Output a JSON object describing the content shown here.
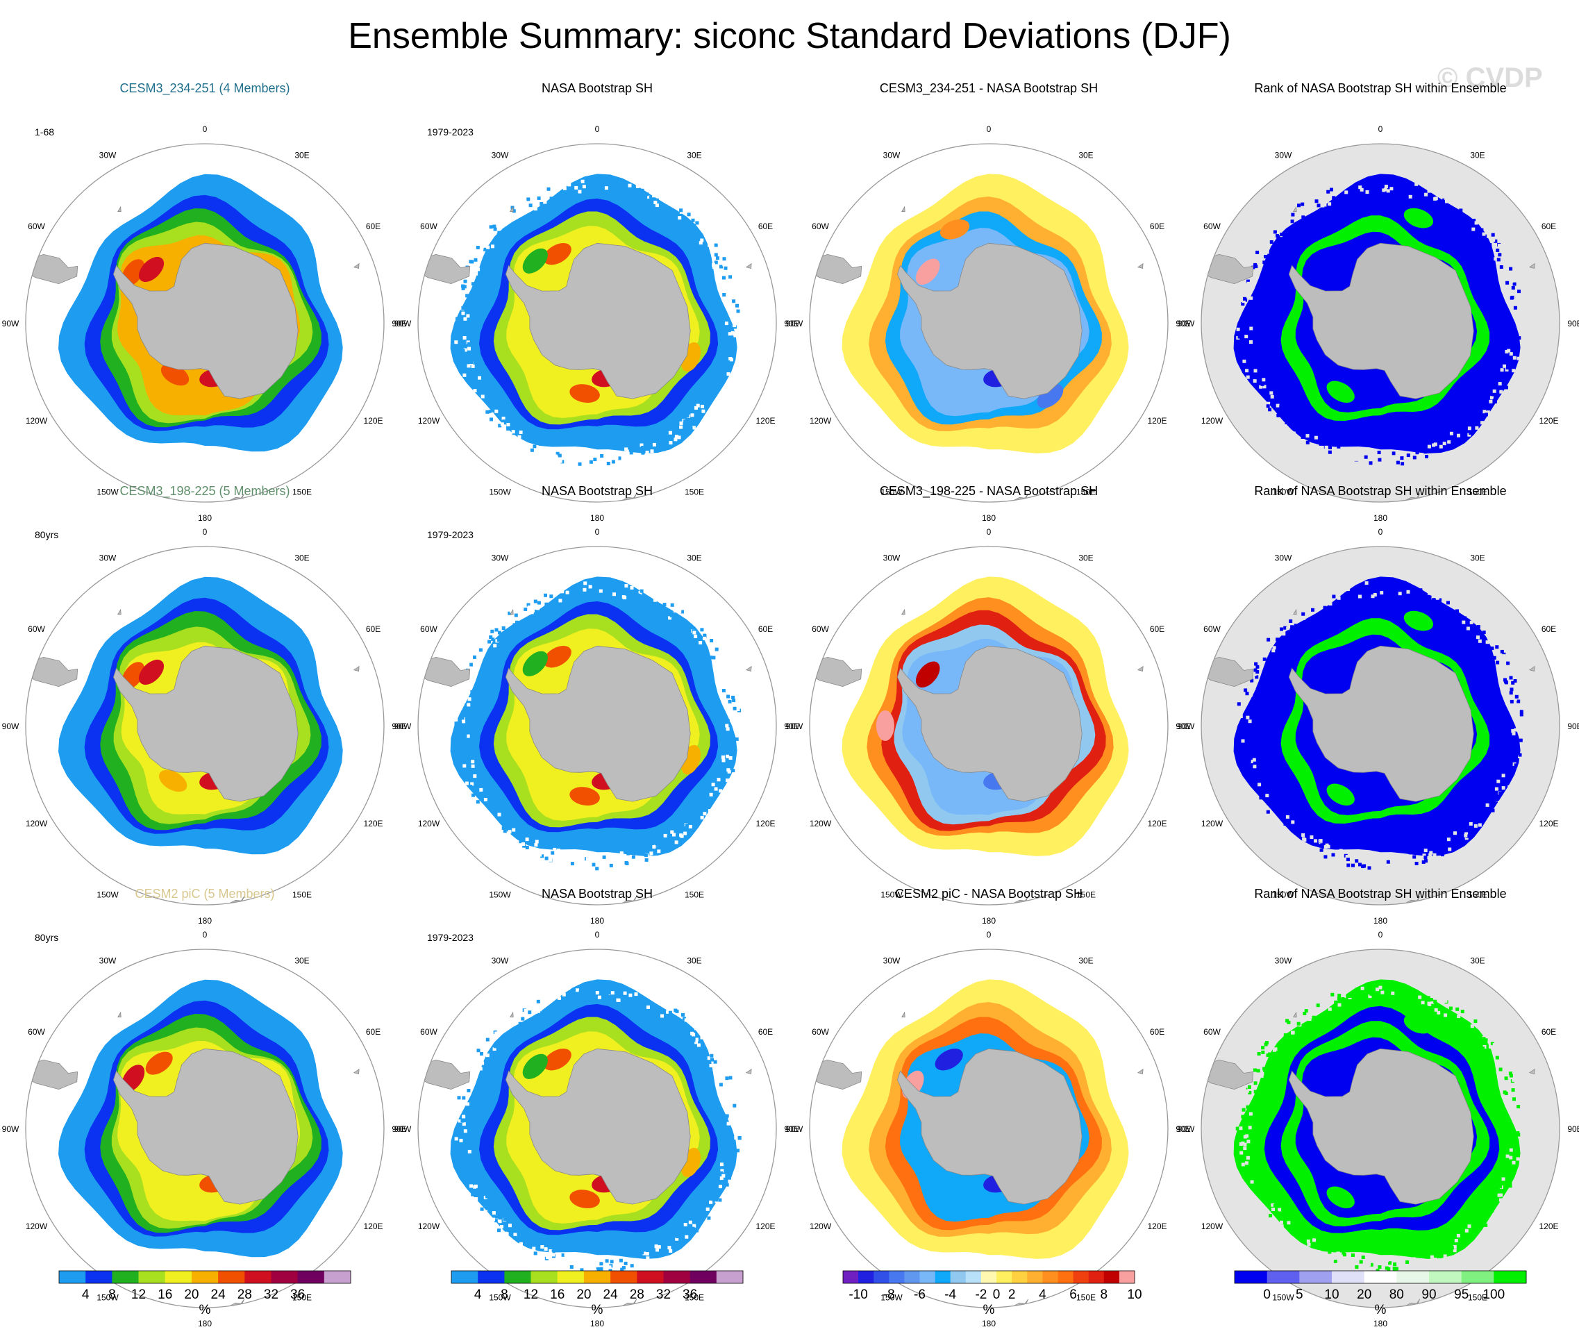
{
  "figure": {
    "title": "Ensemble Summary: siconc Standard Deviations (DJF)",
    "watermark": "© CVDP"
  },
  "lon_labels": [
    "0",
    "30E",
    "60E",
    "90E",
    "120E",
    "150E",
    "180",
    "150W",
    "120W",
    "90W",
    "60W",
    "30W"
  ],
  "colors": {
    "land": "#bdbdbd",
    "land_edge": "#888888",
    "ocean_rank": "#e4e4e4",
    "circle": "#999999",
    "title_row1": "#1f6f8b",
    "title_row2": "#5f8f6a",
    "title_row3": "#d8c78e"
  },
  "colorbars": {
    "std": {
      "colors": [
        "#1e9cf0",
        "#0a32f0",
        "#20b020",
        "#a8e020",
        "#f0f020",
        "#f8b000",
        "#f05000",
        "#d01020",
        "#a00040",
        "#700060",
        "#c8a0d0"
      ],
      "labels": [
        "4",
        "8",
        "12",
        "16",
        "20",
        "24",
        "28",
        "32",
        "36"
      ],
      "label_edges": [
        1,
        2,
        3,
        4,
        5,
        6,
        7,
        8,
        9
      ],
      "unit": "%"
    },
    "diff": {
      "colors": [
        "#7020c0",
        "#2020e0",
        "#3050e8",
        "#4878f0",
        "#6098f0",
        "#78b8f8",
        "#10a8f8",
        "#90c8f0",
        "#b8e0f8",
        "#fff8b0",
        "#fff060",
        "#ffd040",
        "#ffb030",
        "#ff9020",
        "#ff7010",
        "#f04010",
        "#e02010",
        "#c00000",
        "#f8a0a0"
      ],
      "labels": [
        "-10",
        "-8",
        "-6",
        "-4",
        "-2",
        "0",
        "2",
        "4",
        "6",
        "8",
        "10"
      ],
      "label_edges": [
        1,
        3,
        5,
        7,
        9,
        10,
        11,
        13,
        15,
        17,
        19
      ],
      "unit": "%"
    },
    "rank": {
      "colors": [
        "#0000f0",
        "#6060f0",
        "#a0a0f0",
        "#e0e0f8",
        "#ffffff",
        "#e8f8e8",
        "#c0f8c0",
        "#80f080",
        "#00f000"
      ],
      "labels": [
        "0",
        "5",
        "10",
        "20",
        "80",
        "90",
        "95",
        "100"
      ],
      "label_edges": [
        1,
        2,
        3,
        4,
        5,
        6,
        7,
        8
      ],
      "unit": "%"
    }
  },
  "chart_data": [
    {
      "panel": "r1c1",
      "type": "heatmap",
      "projection": "south-polar-stereographic",
      "title": "CESM3_234-251 (4 Members)",
      "title_color": "title_row1",
      "corner_label": "1-68",
      "colorbar": "std",
      "ice_edge_lat": -56,
      "ice_edge_amp": 2.5,
      "bands": [
        {
          "lat": -57.5,
          "value": 3
        },
        {
          "lat": -61,
          "value": 7
        },
        {
          "lat": -63.5,
          "value": 11
        },
        {
          "lat": -65.5,
          "value": 15
        },
        {
          "lat": -67.5,
          "value": 20
        }
      ],
      "hotspots": [
        {
          "lon": -55,
          "lat": -68,
          "value": 26
        },
        {
          "lon": -45,
          "lat": -71,
          "value": 30
        },
        {
          "lon": 170,
          "lat": -76,
          "value": 28
        },
        {
          "lon": -150,
          "lat": -75,
          "value": 24
        }
      ]
    },
    {
      "panel": "r1c2",
      "type": "heatmap",
      "projection": "south-polar-stereographic",
      "title": "NASA Bootstrap SH",
      "corner_label": "1979-2023",
      "colorbar": "std",
      "ice_edge_lat": -55.5,
      "ice_edge_amp": 2,
      "speckle": true,
      "bands": [
        {
          "lat": -57.5,
          "value": 3
        },
        {
          "lat": -61.5,
          "value": 7
        },
        {
          "lat": -64,
          "value": 13
        },
        {
          "lat": -66.5,
          "value": 17
        }
      ],
      "hotspots": [
        {
          "lon": -30,
          "lat": -70,
          "value": 26
        },
        {
          "lon": -45,
          "lat": -68,
          "value": 8
        },
        {
          "lon": 170,
          "lat": -76,
          "value": 30
        },
        {
          "lon": -170,
          "lat": -72,
          "value": 24
        },
        {
          "lon": 110,
          "lat": -65,
          "value": 22
        }
      ]
    },
    {
      "panel": "r1c3",
      "type": "heatmap",
      "projection": "south-polar-stereographic",
      "title": "CESM3_234-251 - NASA Bootstrap SH",
      "corner_label": "",
      "colorbar": "diff",
      "ice_edge_lat": -55.5,
      "ice_edge_amp": 2,
      "bands": [
        {
          "lat": -57.5,
          "value": 1
        },
        {
          "lat": -61,
          "value": 3
        },
        {
          "lat": -64,
          "value": -3
        },
        {
          "lat": -67,
          "value": -5
        }
      ],
      "hotspots": [
        {
          "lon": -50,
          "lat": -70,
          "value": 11
        },
        {
          "lon": -20,
          "lat": -65,
          "value": 5
        },
        {
          "lon": 170,
          "lat": -76,
          "value": -9
        },
        {
          "lon": 140,
          "lat": -66,
          "value": -7
        }
      ]
    },
    {
      "panel": "r1c4",
      "type": "heatmap",
      "projection": "south-polar-stereographic",
      "title": "Rank of NASA Bootstrap SH within Ensemble",
      "corner_label": "",
      "colorbar": "rank",
      "ice_edge_lat": -55.5,
      "ice_edge_amp": 2,
      "rank_ocean": true,
      "speckle": true,
      "bands": [
        {
          "lat": -57.5,
          "value": 0
        },
        {
          "lat": -62,
          "value": 0
        },
        {
          "lat": -65,
          "value": 100
        },
        {
          "lat": -68,
          "value": 0
        }
      ],
      "hotspots": [
        {
          "lon": 20,
          "lat": -62,
          "value": 100
        },
        {
          "lon": -150,
          "lat": -70,
          "value": 100
        }
      ]
    },
    {
      "panel": "r2c1",
      "type": "heatmap",
      "projection": "south-polar-stereographic",
      "title": "CESM3_198-225 (5 Members)",
      "title_color": "title_row2",
      "corner_label": "80yrs",
      "colorbar": "std",
      "ice_edge_lat": -56,
      "ice_edge_amp": 2.5,
      "bands": [
        {
          "lat": -57.5,
          "value": 3
        },
        {
          "lat": -61,
          "value": 7
        },
        {
          "lat": -63.5,
          "value": 11
        },
        {
          "lat": -66,
          "value": 15
        },
        {
          "lat": -68.5,
          "value": 17
        }
      ],
      "hotspots": [
        {
          "lon": -55,
          "lat": -68,
          "value": 26
        },
        {
          "lon": -45,
          "lat": -71,
          "value": 30
        },
        {
          "lon": 170,
          "lat": -76,
          "value": 28
        },
        {
          "lon": -150,
          "lat": -74,
          "value": 22
        }
      ]
    },
    {
      "panel": "r2c2",
      "type": "heatmap",
      "projection": "south-polar-stereographic",
      "title": "NASA Bootstrap SH",
      "corner_label": "1979-2023",
      "colorbar": "std",
      "ice_edge_lat": -55.5,
      "ice_edge_amp": 2,
      "speckle": true,
      "bands": [
        {
          "lat": -57.5,
          "value": 3
        },
        {
          "lat": -61.5,
          "value": 7
        },
        {
          "lat": -64,
          "value": 13
        },
        {
          "lat": -66.5,
          "value": 17
        }
      ],
      "hotspots": [
        {
          "lon": -30,
          "lat": -70,
          "value": 26
        },
        {
          "lon": -45,
          "lat": -68,
          "value": 8
        },
        {
          "lon": 170,
          "lat": -76,
          "value": 30
        },
        {
          "lon": -170,
          "lat": -72,
          "value": 24
        },
        {
          "lon": 110,
          "lat": -65,
          "value": 22
        }
      ]
    },
    {
      "panel": "r2c3",
      "type": "heatmap",
      "projection": "south-polar-stereographic",
      "title": "CESM3_198-225 - NASA Bootstrap SH",
      "corner_label": "",
      "colorbar": "diff",
      "ice_edge_lat": -55.5,
      "ice_edge_amp": 2,
      "bands": [
        {
          "lat": -57.5,
          "value": 1
        },
        {
          "lat": -60.5,
          "value": 5
        },
        {
          "lat": -63,
          "value": 8
        },
        {
          "lat": -65.5,
          "value": -2
        },
        {
          "lat": -68,
          "value": -5
        }
      ],
      "hotspots": [
        {
          "lon": -90,
          "lat": -64,
          "value": 11
        },
        {
          "lon": -50,
          "lat": -70,
          "value": 9
        },
        {
          "lon": 170,
          "lat": -76,
          "value": -7
        }
      ]
    },
    {
      "panel": "r2c4",
      "type": "heatmap",
      "projection": "south-polar-stereographic",
      "title": "Rank of NASA Bootstrap SH within Ensemble",
      "corner_label": "",
      "colorbar": "rank",
      "ice_edge_lat": -55.5,
      "ice_edge_amp": 2,
      "rank_ocean": true,
      "speckle": true,
      "bands": [
        {
          "lat": -57.5,
          "value": 0
        },
        {
          "lat": -62,
          "value": 0
        },
        {
          "lat": -65,
          "value": 100
        },
        {
          "lat": -68,
          "value": 0
        }
      ],
      "hotspots": [
        {
          "lon": 20,
          "lat": -62,
          "value": 100
        },
        {
          "lon": -150,
          "lat": -70,
          "value": 100
        }
      ]
    },
    {
      "panel": "r3c1",
      "type": "heatmap",
      "projection": "south-polar-stereographic",
      "title": "CESM2 piC (5 Members)",
      "title_color": "title_row3",
      "corner_label": "80yrs",
      "colorbar": "std",
      "ice_edge_lat": -56,
      "ice_edge_amp": 2.5,
      "bands": [
        {
          "lat": -57.5,
          "value": 3
        },
        {
          "lat": -61,
          "value": 7
        },
        {
          "lat": -63.5,
          "value": 11
        },
        {
          "lat": -65.5,
          "value": 15
        },
        {
          "lat": -67.5,
          "value": 17
        }
      ],
      "hotspots": [
        {
          "lon": -55,
          "lat": -68,
          "value": 30
        },
        {
          "lon": -35,
          "lat": -70,
          "value": 26
        },
        {
          "lon": 170,
          "lat": -76,
          "value": 26
        }
      ]
    },
    {
      "panel": "r3c2",
      "type": "heatmap",
      "projection": "south-polar-stereographic",
      "title": "NASA Bootstrap SH",
      "corner_label": "1979-2023",
      "colorbar": "std",
      "ice_edge_lat": -55.5,
      "ice_edge_amp": 2,
      "speckle": true,
      "bands": [
        {
          "lat": -57.5,
          "value": 3
        },
        {
          "lat": -61.5,
          "value": 7
        },
        {
          "lat": -64,
          "value": 13
        },
        {
          "lat": -66.5,
          "value": 17
        }
      ],
      "hotspots": [
        {
          "lon": -30,
          "lat": -70,
          "value": 26
        },
        {
          "lon": -45,
          "lat": -68,
          "value": 8
        },
        {
          "lon": 170,
          "lat": -76,
          "value": 30
        },
        {
          "lon": -170,
          "lat": -72,
          "value": 24
        },
        {
          "lon": 110,
          "lat": -65,
          "value": 22
        }
      ]
    },
    {
      "panel": "r3c3",
      "type": "heatmap",
      "projection": "south-polar-stereographic",
      "title": "CESM2 piC - NASA Bootstrap SH",
      "corner_label": "",
      "colorbar": "diff",
      "ice_edge_lat": -55.5,
      "ice_edge_amp": 2,
      "bands": [
        {
          "lat": -57.5,
          "value": 1
        },
        {
          "lat": -61,
          "value": 4
        },
        {
          "lat": -64,
          "value": 6
        },
        {
          "lat": -67,
          "value": -4
        }
      ],
      "hotspots": [
        {
          "lon": -60,
          "lat": -68,
          "value": 11
        },
        {
          "lon": -30,
          "lat": -70,
          "value": -9
        },
        {
          "lon": 170,
          "lat": -76,
          "value": -9
        }
      ]
    },
    {
      "panel": "r3c4",
      "type": "heatmap",
      "projection": "south-polar-stereographic",
      "title": "Rank of NASA Bootstrap SH within Ensemble",
      "corner_label": "",
      "colorbar": "rank",
      "ice_edge_lat": -55.5,
      "ice_edge_amp": 2,
      "rank_ocean": true,
      "speckle": true,
      "bands": [
        {
          "lat": -57.5,
          "value": 100
        },
        {
          "lat": -62,
          "value": 0
        },
        {
          "lat": -65,
          "value": 100
        },
        {
          "lat": -68,
          "value": 0
        }
      ],
      "hotspots": [
        {
          "lon": 20,
          "lat": -62,
          "value": 100
        },
        {
          "lon": -150,
          "lat": -70,
          "value": 100
        }
      ]
    }
  ]
}
